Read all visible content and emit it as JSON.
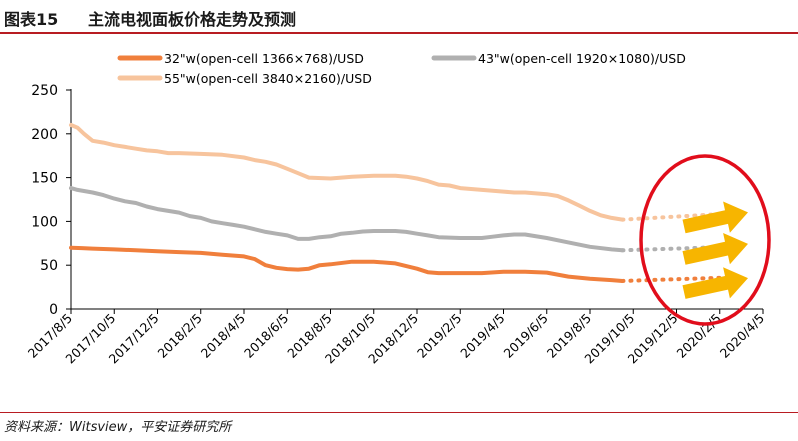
{
  "header": {
    "label": "图表15",
    "title": "主流电视面板价格走势及预测"
  },
  "footer": {
    "source": "资料来源：Witsview，平安证券研究所"
  },
  "chart_data": {
    "type": "line",
    "title": "主流电视面板价格走势及预测",
    "xlabel": "",
    "ylabel": "",
    "ylim": [
      0,
      250
    ],
    "yticks": [
      0,
      50,
      100,
      150,
      200,
      250
    ],
    "x_tick_labels": [
      "2017/8/5",
      "2017/10/5",
      "2017/12/5",
      "2018/2/5",
      "2018/4/5",
      "2018/6/5",
      "2018/8/5",
      "2018/10/5",
      "2018/12/5",
      "2019/2/5",
      "2019/4/5",
      "2019/6/5",
      "2019/8/5",
      "2019/10/5",
      "2019/12/5",
      "2020/2/5",
      "2020/4/5"
    ],
    "x_months_range": [
      0,
      32
    ],
    "grid": false,
    "legend_placement": "top",
    "series": [
      {
        "name": "32\"w(open-cell 1366×768)/USD",
        "color": "#f07f3c",
        "x": [
          0,
          0.5,
          1,
          1.5,
          2,
          3,
          4,
          5,
          6,
          7,
          8,
          8.5,
          9,
          9.5,
          10,
          10.5,
          11,
          11.5,
          12,
          13,
          14,
          15,
          16,
          16.5,
          17,
          18,
          19,
          20,
          21,
          22,
          23,
          24,
          25,
          25.5
        ],
        "values": [
          70,
          69.5,
          69,
          68.5,
          68,
          67,
          66,
          65,
          64,
          62,
          60,
          57,
          50,
          47,
          45.5,
          45,
          46,
          50,
          51,
          54,
          54,
          52,
          46,
          42,
          41,
          41,
          41,
          42.5,
          42.5,
          41.5,
          37,
          34.5,
          33,
          32
        ]
      },
      {
        "name": "43\"w(open-cell 1920×1080)/USD",
        "color": "#b0b0b0",
        "x": [
          0,
          0.3,
          1,
          1.5,
          2,
          2.5,
          3,
          3.5,
          4,
          4.5,
          5,
          5.5,
          6,
          6.5,
          7,
          7.5,
          8,
          8.5,
          9,
          9.5,
          10,
          10.5,
          11,
          11.5,
          12,
          12.5,
          13,
          13.5,
          14,
          14.5,
          15,
          15.5,
          16,
          16.5,
          17,
          18,
          19,
          19.5,
          20,
          20.5,
          21,
          22,
          23,
          24,
          25,
          25.5
        ],
        "values": [
          138,
          136,
          133,
          130,
          126,
          123,
          121,
          117,
          114,
          112,
          110,
          106,
          104,
          100,
          98,
          96,
          94,
          91,
          88,
          86,
          84,
          80,
          80,
          82,
          83,
          86,
          87,
          88.5,
          89,
          89,
          89,
          88,
          86,
          84,
          82,
          81,
          81,
          82.5,
          84,
          85,
          85,
          81,
          76,
          71,
          68,
          67
        ]
      },
      {
        "name": "55\"w(open-cell 3840×2160)/USD",
        "color": "#f7c49d",
        "x": [
          0,
          0.3,
          0.6,
          1,
          1.5,
          2,
          2.5,
          3,
          3.5,
          4,
          4.5,
          5,
          6,
          7,
          8,
          8.5,
          9,
          9.5,
          10,
          10.5,
          11,
          12,
          12.5,
          13,
          14,
          15,
          15.5,
          16,
          16.5,
          17,
          17.5,
          18,
          18.5,
          19,
          20,
          20.5,
          21,
          21.5,
          22,
          22.5,
          23,
          23.5,
          24,
          24.5,
          25,
          25.5
        ],
        "values": [
          210,
          207,
          200,
          192,
          190,
          187,
          185,
          183,
          181,
          180,
          178,
          178,
          177,
          176,
          173,
          170,
          168,
          165,
          160,
          155,
          150,
          149,
          150,
          151,
          152,
          152,
          151,
          149,
          146,
          142,
          141,
          138,
          137,
          136,
          134,
          133,
          133,
          132,
          131,
          129,
          124,
          118,
          112,
          107,
          104,
          102
        ]
      }
    ],
    "forecast": [
      {
        "series": "32\"w(open-cell 1366×768)/USD",
        "x": [
          25.5,
          30.5
        ],
        "values": [
          32,
          36
        ]
      },
      {
        "series": "43\"w(open-cell 1920×1080)/USD",
        "x": [
          25.5,
          30.5
        ],
        "values": [
          67,
          71
        ]
      },
      {
        "series": "55\"w(open-cell 3840×2160)/USD",
        "x": [
          25.5,
          30.5
        ],
        "values": [
          102,
          109
        ]
      }
    ],
    "forecast_annotation": "upward arrows inside red ellipse",
    "annotation_colors": {
      "arrow": "#f7b500",
      "ellipse": "#e10d1b"
    }
  }
}
